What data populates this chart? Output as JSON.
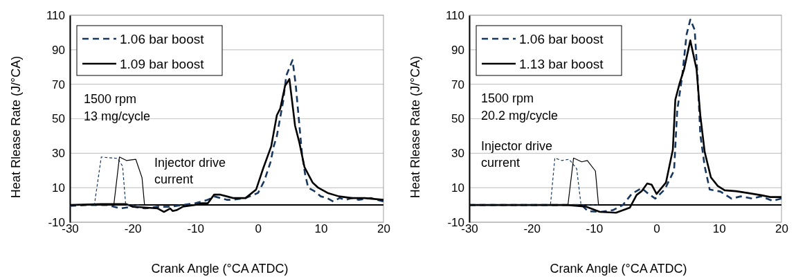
{
  "chart_data": [
    {
      "type": "line",
      "xlabel": "Crank Angle (°CA ATDC)",
      "ylabel": "Heat Rlease Rate (J/°CA)",
      "xlim": [
        -30,
        20
      ],
      "xticks": [
        -30,
        -20,
        -10,
        0,
        10,
        20
      ],
      "ylim": [
        -10,
        110
      ],
      "yticks": [
        -10,
        10,
        30,
        50,
        70,
        90,
        110
      ],
      "grid": "y",
      "legend": "top left",
      "annotations": [
        "1500 rpm",
        "13 mg/cycle",
        "Injector drive current"
      ],
      "series": [
        {
          "name": "1.06 bar boost",
          "color": "#17375e",
          "line_style": "dashed",
          "x": [
            -30,
            -27,
            -24,
            -22,
            -20,
            -18,
            -16,
            -14,
            -12,
            -10,
            -8,
            -7,
            -6,
            -5,
            -4,
            -2,
            0,
            1,
            2,
            2.5,
            3,
            4,
            4.5,
            5.5,
            6,
            6.5,
            7,
            7.5,
            8,
            9,
            10,
            11,
            12,
            13,
            14,
            15,
            16,
            18,
            20
          ],
          "values": [
            -0.5,
            0,
            0,
            -2,
            -1,
            -2,
            -1,
            -1,
            0,
            1,
            3,
            5,
            4,
            3,
            3,
            4,
            7,
            14,
            25,
            34,
            40,
            60,
            75,
            84,
            70,
            50,
            30,
            18,
            10,
            8,
            5,
            4,
            2,
            4,
            3,
            4,
            3,
            4,
            2
          ]
        },
        {
          "name": "1.09 bar boost",
          "color": "#000000",
          "line_style": "solid",
          "x": [
            -30,
            -25,
            -22,
            -21,
            -20,
            -18,
            -16,
            -15,
            -14,
            -13.6,
            -13,
            -12,
            -10,
            -9,
            -8,
            -7,
            -6,
            -5,
            -4,
            -2,
            -0.3,
            0.8,
            2.1,
            3,
            3.55,
            4.3,
            5,
            5.9,
            6.6,
            7.4,
            8.7,
            9.6,
            11.1,
            12.9,
            15,
            17,
            20
          ],
          "values": [
            0,
            0.5,
            0.5,
            0.5,
            -1,
            -1.5,
            -2,
            -4,
            -2,
            -3.5,
            -3,
            -1,
            0,
            1,
            1,
            6,
            6,
            5,
            4,
            4,
            9,
            21,
            34,
            52,
            56,
            69,
            73,
            46,
            36,
            22,
            13,
            10,
            7,
            5,
            4,
            4,
            3
          ]
        },
        {
          "color": "#17375e",
          "line_style": "dashed",
          "x": [
            -30,
            -26.1,
            -25,
            -22.4,
            -21.6,
            -21.1,
            -19
          ],
          "values": [
            0,
            0,
            27.8,
            27,
            22.5,
            0,
            0
          ]
        },
        {
          "color": "#000000",
          "line_style": "solid",
          "x": [
            -30,
            -23,
            -22.1,
            -21,
            -19.5,
            -18.5,
            -18.1,
            -16
          ],
          "values": [
            0,
            0,
            27.8,
            25.8,
            26.5,
            15.8,
            0,
            0
          ]
        }
      ]
    },
    {
      "type": "line",
      "xlabel": "Crank Angle (°CA ATDC)",
      "ylabel": "Heat Rlease Rate (J/°CA)",
      "xlim": [
        -30,
        20
      ],
      "xticks": [
        -30,
        -20,
        -10,
        0,
        10,
        20
      ],
      "ylim": [
        -10,
        110
      ],
      "yticks": [
        -10,
        10,
        30,
        50,
        70,
        90,
        110
      ],
      "grid": "y",
      "legend": "top left",
      "annotations": [
        "1500 rpm",
        "20.2 mg/cycle",
        "Injector drive current"
      ],
      "series": [
        {
          "name": "1.06 bar boost",
          "color": "#17375e",
          "line_style": "dashed",
          "x": [
            -30,
            -16,
            -12,
            -11,
            -9,
            -7,
            -5.4,
            -4,
            -2.4,
            -1.3,
            -0.2,
            1.3,
            2.8,
            3.3,
            4.1,
            4.8,
            5.4,
            6.1,
            6.6,
            7,
            7.7,
            8.5,
            10.2,
            12,
            13.5,
            15.3,
            16.7,
            18.6,
            20
          ],
          "values": [
            0,
            0,
            0,
            -3.6,
            -4,
            -3,
            0,
            6.4,
            9.8,
            6.4,
            3.7,
            9,
            20,
            54.6,
            74.7,
            98.8,
            107.5,
            101.5,
            72,
            41,
            22.5,
            9,
            7.8,
            3.7,
            5,
            3.7,
            5,
            2.4,
            3.7
          ]
        },
        {
          "name": "1.13 bar boost",
          "color": "#000000",
          "line_style": "solid",
          "x": [
            -30,
            -14.3,
            -11.3,
            -9.1,
            -6.5,
            -4.3,
            -3.2,
            -2.4,
            -1.5,
            -0.8,
            0,
            1.5,
            2.6,
            3,
            3.7,
            4.4,
            5.4,
            6.4,
            7,
            7.7,
            8.7,
            9.8,
            10.9,
            12.7,
            14.5,
            16.7,
            18.2,
            20
          ],
          "values": [
            0,
            0,
            -1,
            -4,
            -4.5,
            -1.6,
            5.8,
            8,
            12.5,
            11.8,
            6.4,
            13,
            32,
            61,
            70.7,
            78.7,
            95.4,
            78.7,
            52,
            30.8,
            16,
            11,
            8.5,
            8,
            7,
            5.7,
            4.6,
            4.6
          ]
        },
        {
          "color": "#17375e",
          "line_style": "dashed",
          "x": [
            -30,
            -17,
            -16.3,
            -15.2,
            -14,
            -12.8,
            -12.1,
            -9.2
          ],
          "values": [
            0,
            0,
            27.2,
            25.8,
            26.5,
            21,
            0,
            0
          ]
        },
        {
          "color": "#000000",
          "line_style": "solid",
          "x": [
            -30,
            -14.2,
            -13.3,
            -12,
            -11.1,
            -9.8,
            -9.3,
            -9
          ],
          "values": [
            0,
            0,
            27.2,
            25,
            25.8,
            19.7,
            0,
            0
          ]
        }
      ]
    }
  ]
}
